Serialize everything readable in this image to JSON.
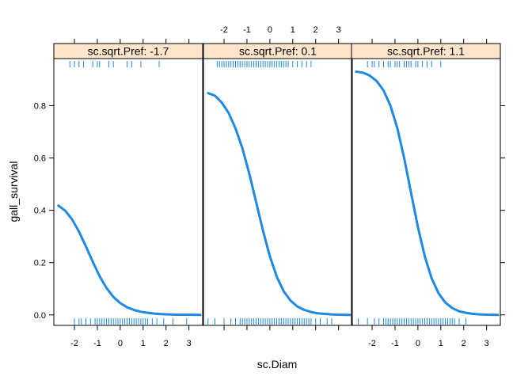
{
  "chart_data": {
    "type": "line",
    "layout": "lattice-3-panels",
    "xlabel": "sc.Diam",
    "ylabel": "gall_survival",
    "xlim": [
      -2.9,
      3.6
    ],
    "ylim": [
      -0.04,
      0.98
    ],
    "x_ticks": [
      -2,
      -1,
      0,
      1,
      2,
      3
    ],
    "y_ticks": [
      0.0,
      0.2,
      0.4,
      0.6,
      0.8
    ],
    "x_tick_labels": [
      "-2",
      "-1",
      "0",
      "1",
      "2",
      "3"
    ],
    "y_tick_labels": [
      "0.0",
      "0.2",
      "0.4",
      "0.6",
      "0.8"
    ],
    "line_color": "#1e88e5",
    "strip_color": "#ffe5cc",
    "panels": [
      {
        "strip": "sc.sqrt.Pref: -1.7",
        "x": [
          -2.7,
          -2.4,
          -2.1,
          -1.8,
          -1.5,
          -1.2,
          -0.9,
          -0.6,
          -0.3,
          0.0,
          0.3,
          0.6,
          0.9,
          1.2,
          1.5,
          1.8,
          2.1,
          2.4,
          2.7,
          3.0,
          3.5
        ],
        "y": [
          0.418,
          0.398,
          0.365,
          0.318,
          0.262,
          0.203,
          0.148,
          0.103,
          0.069,
          0.045,
          0.029,
          0.019,
          0.012,
          0.008,
          0.005,
          0.003,
          0.002,
          0.001,
          0.001,
          0.001,
          0.0
        ],
        "rug_top": [
          -2.2,
          -2.0,
          -1.8,
          -1.6,
          -1.2,
          -1.0,
          -0.9,
          -0.5,
          -0.3,
          0.3,
          0.5,
          0.9,
          1.7
        ],
        "rug_bottom": [
          -2.0,
          -1.8,
          -1.7,
          -1.5,
          -1.3,
          -1.1,
          -1.0,
          -0.9,
          -0.8,
          -0.7,
          -0.6,
          -0.5,
          -0.4,
          -0.3,
          -0.2,
          -0.1,
          0.0,
          0.1,
          0.2,
          0.3,
          0.4,
          0.5,
          0.6,
          0.7,
          0.8,
          0.9,
          1.0,
          1.1,
          1.2,
          1.4,
          1.6,
          1.9,
          2.3,
          2.9
        ]
      },
      {
        "strip": "sc.sqrt.Pref: 0.1",
        "x": [
          -2.7,
          -2.4,
          -2.1,
          -1.8,
          -1.5,
          -1.2,
          -0.9,
          -0.6,
          -0.3,
          0.0,
          0.3,
          0.6,
          0.9,
          1.2,
          1.5,
          1.8,
          2.1,
          2.4,
          2.7,
          3.0,
          3.5
        ],
        "y": [
          0.848,
          0.838,
          0.812,
          0.772,
          0.713,
          0.637,
          0.541,
          0.432,
          0.322,
          0.224,
          0.146,
          0.091,
          0.055,
          0.032,
          0.019,
          0.011,
          0.006,
          0.004,
          0.002,
          0.001,
          0.0
        ],
        "rug_top": [
          -2.3,
          -2.2,
          -2.1,
          -2.0,
          -1.9,
          -1.8,
          -1.7,
          -1.6,
          -1.5,
          -1.4,
          -1.3,
          -1.2,
          -1.1,
          -1.0,
          -0.9,
          -0.8,
          -0.7,
          -0.6,
          -0.5,
          -0.4,
          -0.3,
          -0.2,
          -0.1,
          0.0,
          0.1,
          0.2,
          0.3,
          0.4,
          0.5,
          0.6,
          0.7,
          0.8,
          1.0,
          1.2,
          1.4,
          1.6,
          1.8
        ],
        "rug_bottom": [
          -2.7,
          -2.4,
          -2.0,
          -1.7,
          -1.5,
          -1.3,
          -1.2,
          -1.1,
          -1.0,
          -0.9,
          -0.8,
          -0.7,
          -0.6,
          -0.5,
          -0.4,
          -0.3,
          -0.2,
          -0.1,
          0.0,
          0.1,
          0.2,
          0.3,
          0.4,
          0.5,
          0.6,
          0.7,
          0.8,
          0.9,
          1.0,
          1.1,
          1.2,
          1.3,
          1.4,
          1.5,
          1.6,
          1.7,
          1.8,
          2.0,
          2.2,
          2.5,
          2.7
        ]
      },
      {
        "strip": "sc.sqrt.Pref: 1.1",
        "x": [
          -2.7,
          -2.4,
          -2.1,
          -1.8,
          -1.5,
          -1.2,
          -0.9,
          -0.6,
          -0.3,
          0.0,
          0.3,
          0.6,
          0.9,
          1.2,
          1.5,
          1.8,
          2.1,
          2.4,
          2.7,
          3.0,
          3.5
        ],
        "y": [
          0.93,
          0.926,
          0.915,
          0.894,
          0.858,
          0.8,
          0.715,
          0.6,
          0.467,
          0.336,
          0.224,
          0.14,
          0.083,
          0.047,
          0.026,
          0.014,
          0.008,
          0.004,
          0.002,
          0.001,
          0.0
        ],
        "rug_top": [
          -2.2,
          -2.0,
          -1.9,
          -1.7,
          -1.5,
          -1.3,
          -1.2,
          -1.0,
          -0.9,
          -0.8,
          -0.6,
          -0.5,
          -0.4,
          -0.3,
          -0.1,
          0.0,
          0.2,
          0.4,
          0.6,
          1.0
        ],
        "rug_bottom": [
          -2.6,
          -2.2,
          -1.9,
          -1.7,
          -1.5,
          -1.4,
          -1.3,
          -1.2,
          -1.1,
          -1.0,
          -0.9,
          -0.8,
          -0.7,
          -0.6,
          -0.5,
          -0.4,
          -0.3,
          -0.2,
          -0.1,
          0.0,
          0.1,
          0.2,
          0.3,
          0.4,
          0.5,
          0.6,
          0.7,
          0.8,
          0.9,
          1.0,
          1.1,
          1.2,
          1.3,
          1.4,
          1.5,
          1.6,
          1.8,
          2.1
        ]
      }
    ]
  }
}
